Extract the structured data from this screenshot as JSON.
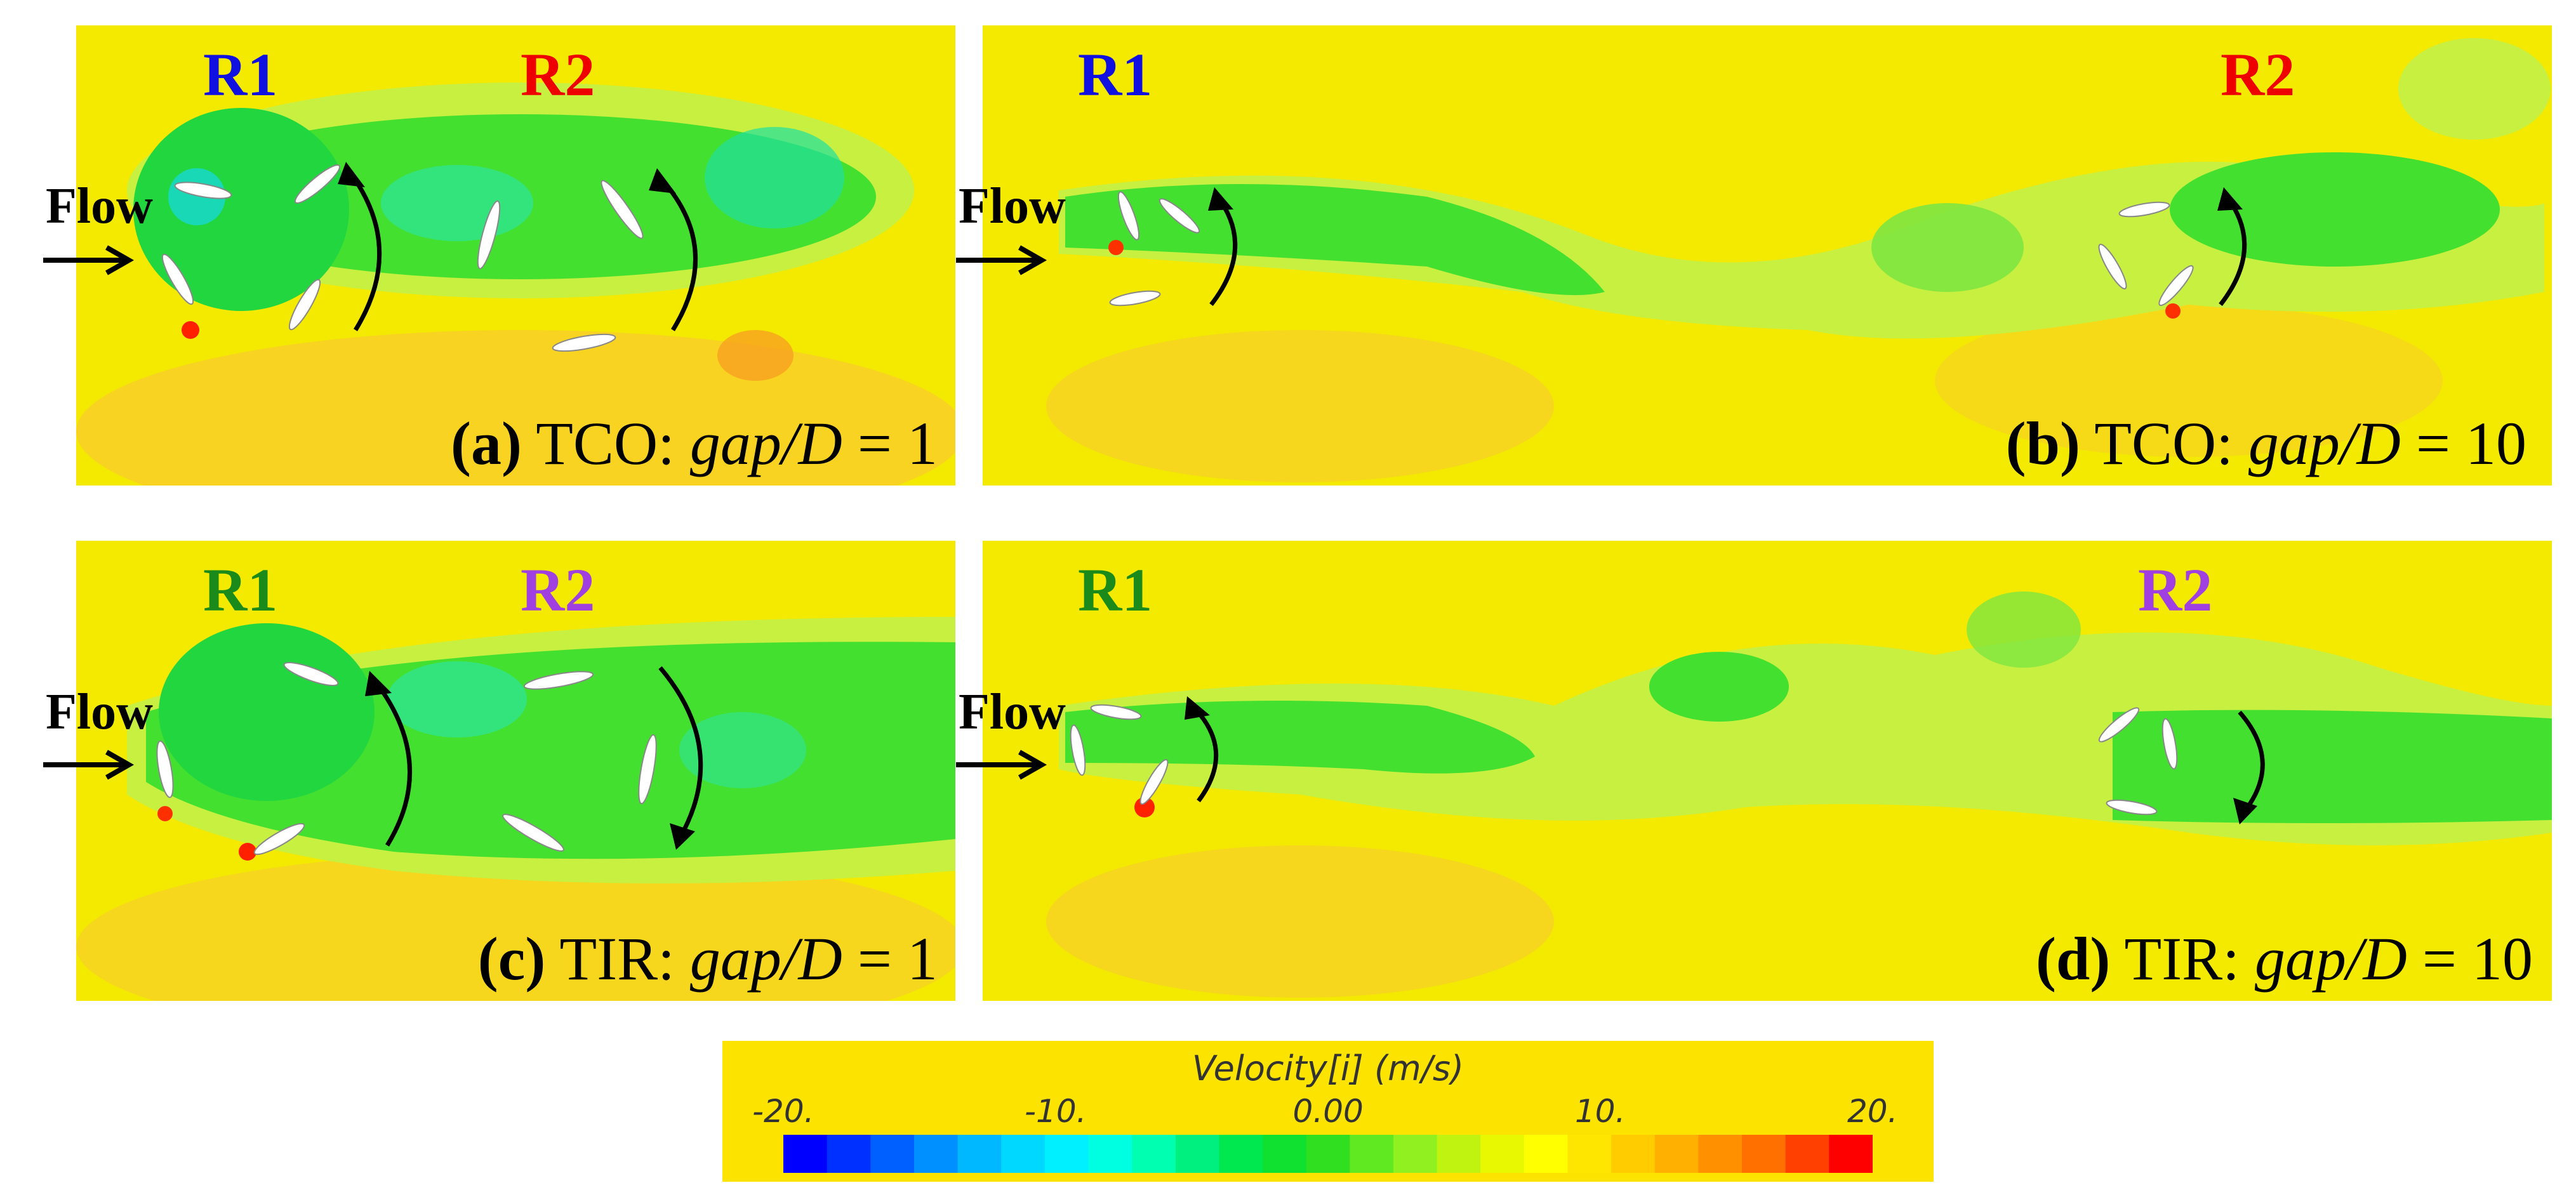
{
  "panels": {
    "a": {
      "r1": "R1",
      "r2": "R2",
      "flow": "Flow",
      "cap_letter": "(a)",
      "cap_type": "TCO:",
      "cap_var": "gap/D",
      "cap_eq": "= 1",
      "r1_color": "#1010e0",
      "r2_color": "#ee0000"
    },
    "b": {
      "r1": "R1",
      "r2": "R2",
      "flow": "Flow",
      "cap_letter": "(b)",
      "cap_type": "TCO:",
      "cap_var": "gap/D",
      "cap_eq": "= 10",
      "r1_color": "#1010e0",
      "r2_color": "#ee0000"
    },
    "c": {
      "r1": "R1",
      "r2": "R2",
      "flow": "Flow",
      "cap_letter": "(c)",
      "cap_type": "TIR:",
      "cap_var": "gap/D",
      "cap_eq": "= 1",
      "r1_color": "#1a8a1a",
      "r2_color": "#a040e0"
    },
    "d": {
      "r1": "R1",
      "r2": "R2",
      "flow": "Flow",
      "cap_letter": "(d)",
      "cap_type": "TIR:",
      "cap_var": "gap/D",
      "cap_eq": "= 10",
      "r1_color": "#1a8a1a",
      "r2_color": "#a040e0"
    }
  },
  "legend": {
    "title": "Velocity[i] (m/s)",
    "ticks": [
      "-20.",
      "-10.",
      "0.00",
      "10.",
      "20."
    ],
    "range": [
      -20,
      20
    ],
    "tick_values": [
      -20,
      -10,
      0,
      10,
      20
    ],
    "colors": [
      "#0000ff",
      "#0030ff",
      "#0060ff",
      "#0090ff",
      "#00b8ff",
      "#00d8ff",
      "#00f0ff",
      "#00ffe0",
      "#00ffb0",
      "#00f080",
      "#00e850",
      "#10e030",
      "#30e020",
      "#60e820",
      "#90f020",
      "#c0f410",
      "#e8f800",
      "#ffff00",
      "#ffe600",
      "#ffcc00",
      "#ffb000",
      "#ff9000",
      "#ff7000",
      "#ff4000",
      "#ff0000"
    ]
  }
}
